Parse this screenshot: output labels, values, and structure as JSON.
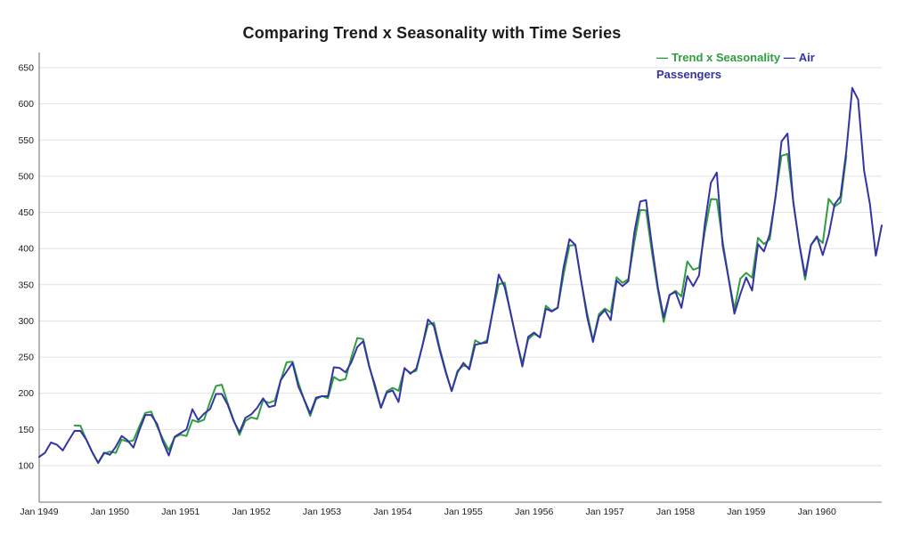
{
  "title": "Comparing Trend x Seasonality with Time Series",
  "legend": {
    "marker": "—",
    "position": "top-right"
  },
  "colors": {
    "background": "#ffffff",
    "gridline": "#e2e2e2",
    "axis": "#8c8c8c",
    "title_text": "#1c1c1c",
    "tick_text": "#1b1b1b",
    "trend_series": "#2f9e41",
    "passengers_series": "#3434a4"
  },
  "chart_data": {
    "type": "line",
    "title": "Comparing Trend x Seasonality with Time Series",
    "xlabel": "",
    "ylabel": "",
    "x_unit": "month",
    "x_start": "Jan 1949",
    "x_end": "Dec 1960",
    "months_total": 144,
    "x_tick_labels": [
      "Jan 1949",
      "Jan 1950",
      "Jan 1951",
      "Jan 1952",
      "Jan 1953",
      "Jan 1954",
      "Jan 1955",
      "Jan 1956",
      "Jan 1957",
      "Jan 1958",
      "Jan 1959",
      "Jan 1960"
    ],
    "y_ticks": [
      100,
      150,
      200,
      250,
      300,
      350,
      400,
      450,
      500,
      550,
      600,
      650
    ],
    "ylim": [
      100,
      650
    ],
    "grid": true,
    "legend_position": "top-right",
    "series": [
      {
        "name": "Trend x Seasonality",
        "id": "trend-x-seasonality",
        "color": "#2f9e41",
        "start_month_index": 6,
        "start_label": "Jul 1949",
        "values": [
          155.5,
          155.2,
          135.7,
          118.5,
          103.4,
          116.6,
          119.5,
          117.6,
          135.9,
          133.1,
          134.9,
          154.4,
          172.9,
          174.7,
          154.5,
          136.8,
          121.4,
          139.1,
          143.0,
          141.0,
          163.0,
          160.2,
          163.6,
          188.2,
          210.1,
          211.8,
          186.1,
          163.0,
          142.6,
          161.9,
          166.7,
          164.5,
          190.4,
          186.7,
          190.0,
          217.9,
          242.9,
          243.7,
          214.4,
          190.1,
          168.6,
          191.8,
          196.4,
          193.1,
          222.6,
          217.5,
          219.9,
          250.1,
          276.4,
          274.9,
          238.6,
          207.0,
          179.8,
          202.7,
          207.5,
          203.6,
          234.0,
          228.3,
          231.2,
          264.6,
          295.0,
          297.6,
          262.1,
          230.7,
          203.1,
          231.1,
          238.3,
          235.6,
          273.1,
          268.6,
          273.3,
          313.8,
          350.5,
          353.0,
          311.0,
          273.9,
          241.2,
          274.5,
          282.1,
          277.8,
          321.0,
          314.0,
          318.5,
          364.0,
          404.2,
          404.8,
          354.7,
          311.1,
          272.8,
          309.3,
          317.0,
          311.9,
          360.3,
          352.7,
          357.7,
          408.6,
          453.2,
          452.8,
          394.7,
          343.3,
          298.7,
          335.8,
          341.6,
          333.9,
          382.3,
          370.8,
          373.6,
          423.9,
          468.4,
          468.0,
          409.9,
          359.8,
          316.2,
          358.3,
          366.4,
          359.8,
          414.9,
          406.3,
          412.7,
          473.5,
          528.3,
          530.8,
          464.2,
          406.5,
          357.2,
          405.0,
          415.4,
          407.7,
          468.7,
          458.0,
          464.0,
          528.6
        ]
      },
      {
        "name": "Air Passengers",
        "id": "air-passengers",
        "color": "#3434a4",
        "start_month_index": 0,
        "start_label": "Jan 1949",
        "values": [
          112,
          118,
          132,
          129,
          121,
          135,
          148,
          148,
          136,
          119,
          104,
          118,
          115,
          126,
          141,
          135,
          125,
          149,
          170,
          170,
          158,
          133,
          114,
          140,
          145,
          150,
          178,
          163,
          172,
          178,
          199,
          199,
          184,
          162,
          146,
          166,
          171,
          180,
          193,
          181,
          183,
          218,
          230,
          242,
          209,
          191,
          172,
          194,
          196,
          196,
          236,
          235,
          229,
          243,
          264,
          272,
          237,
          211,
          180,
          201,
          204,
          188,
          235,
          227,
          234,
          264,
          302,
          293,
          259,
          229,
          203,
          229,
          242,
          233,
          267,
          269,
          270,
          315,
          364,
          347,
          312,
          274,
          237,
          278,
          284,
          277,
          317,
          313,
          318,
          374,
          413,
          405,
          355,
          306,
          271,
          306,
          315,
          301,
          356,
          348,
          355,
          422,
          465,
          467,
          404,
          347,
          305,
          336,
          340,
          318,
          362,
          348,
          363,
          435,
          491,
          505,
          404,
          359,
          310,
          337,
          360,
          342,
          406,
          396,
          420,
          472,
          548,
          559,
          463,
          407,
          362,
          405,
          417,
          391,
          419,
          461,
          472,
          535,
          622,
          606,
          508,
          461,
          390,
          432
        ]
      }
    ]
  }
}
